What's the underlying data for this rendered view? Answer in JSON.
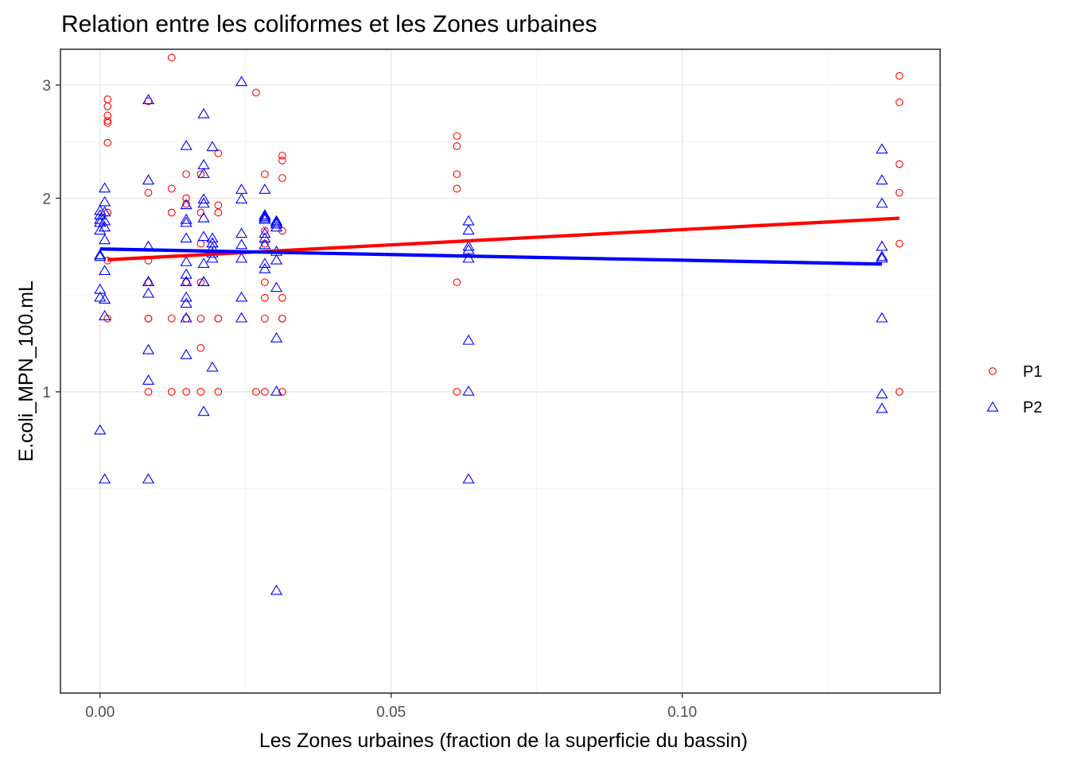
{
  "chart_data": {
    "type": "scatter",
    "title": "Relation entre les coliformes et les Zones urbaines",
    "xlabel": "Les Zones urbaines (fraction de la superficie du bassin)",
    "ylabel": "E.coli_MPN_100.mL",
    "xlim": [
      -0.0068,
      0.1443
    ],
    "ylim": [
      0.34,
      3.41
    ],
    "x_ticks": [
      0.0,
      0.05,
      0.1
    ],
    "x_tick_labels": [
      "0.00",
      "0.05",
      "0.10"
    ],
    "y_ticks": [
      1,
      2,
      3
    ],
    "y_tick_labels": [
      "1",
      "2",
      "3"
    ],
    "grid": true,
    "legend": "right",
    "series": [
      {
        "name": "P1",
        "color": "#ff0000",
        "marker": "circle",
        "x": [
          0.0013,
          0.0013,
          0.0013,
          0.0013,
          0.0013,
          0.0013,
          0.0013,
          0.0013,
          0.0013,
          0.0083,
          0.0083,
          0.0083,
          0.0083,
          0.0083,
          0.0083,
          0.0083,
          0.0123,
          0.0123,
          0.0123,
          0.0123,
          0.0123,
          0.0148,
          0.0148,
          0.0148,
          0.0148,
          0.0148,
          0.0148,
          0.0148,
          0.0173,
          0.0173,
          0.0173,
          0.0173,
          0.0173,
          0.0173,
          0.0173,
          0.0203,
          0.0203,
          0.0203,
          0.0203,
          0.0203,
          0.0203,
          0.0268,
          0.0268,
          0.0283,
          0.0283,
          0.0283,
          0.0283,
          0.0283,
          0.0283,
          0.0283,
          0.0313,
          0.0313,
          0.0313,
          0.0313,
          0.0313,
          0.0313,
          0.0313,
          0.0313,
          0.0613,
          0.0613,
          0.0613,
          0.0613,
          0.0613,
          0.0613,
          0.1373,
          0.1373,
          0.1373,
          0.1373,
          0.1373,
          0.1373
        ],
        "y": [
          2.85,
          2.78,
          2.69,
          2.64,
          2.62,
          2.44,
          1.9,
          1.6,
          1.3,
          2.83,
          2.04,
          1.6,
          1.48,
          1.3,
          1.0,
          1.3,
          3.31,
          2.07,
          1.9,
          1.3,
          1.0,
          2.18,
          2.0,
          1.96,
          1.48,
          1.3,
          1.0,
          1.48,
          1.9,
          1.7,
          1.48,
          1.3,
          1.0,
          1.17,
          2.18,
          2.35,
          1.95,
          1.9,
          1.3,
          1.0,
          1.3,
          2.92,
          1.0,
          2.18,
          1.78,
          1.48,
          1.4,
          1.3,
          1.0,
          1.7,
          2.33,
          2.29,
          2.15,
          1.78,
          1.4,
          1.3,
          1.0,
          1.3,
          2.5,
          2.41,
          2.18,
          2.07,
          1.48,
          1.0,
          3.1,
          2.82,
          2.26,
          2.04,
          1.7,
          1.0
        ]
      },
      {
        "name": "P2",
        "color": "#0000ff",
        "marker": "triangle",
        "x": [
          0.0,
          0.0,
          0.0,
          0.0,
          0.0,
          0.0,
          0.0,
          0.0,
          0.0,
          0.0,
          0.0008,
          0.0008,
          0.0008,
          0.0008,
          0.0008,
          0.0008,
          0.0008,
          0.0008,
          0.0008,
          0.0008,
          0.0083,
          0.0083,
          0.0083,
          0.0083,
          0.0083,
          0.0083,
          0.0083,
          0.0083,
          0.0083,
          0.0148,
          0.0148,
          0.0148,
          0.0148,
          0.0148,
          0.0148,
          0.0148,
          0.0148,
          0.0148,
          0.0148,
          0.0148,
          0.0148,
          0.0178,
          0.0178,
          0.0178,
          0.0178,
          0.0178,
          0.0178,
          0.0178,
          0.0178,
          0.0178,
          0.0178,
          0.0178,
          0.0193,
          0.0193,
          0.0193,
          0.0193,
          0.0193,
          0.0193,
          0.0193,
          0.0193,
          0.0243,
          0.0243,
          0.0243,
          0.0243,
          0.0243,
          0.0243,
          0.0243,
          0.0243,
          0.0283,
          0.0283,
          0.0283,
          0.0283,
          0.0283,
          0.0283,
          0.0283,
          0.0283,
          0.0283,
          0.0283,
          0.0303,
          0.0303,
          0.0303,
          0.0303,
          0.0303,
          0.0303,
          0.0303,
          0.0303,
          0.0303,
          0.0303,
          0.0633,
          0.0633,
          0.0633,
          0.0633,
          0.0633,
          0.0633,
          0.0633,
          0.0633,
          0.1343,
          0.1343,
          0.1343,
          0.1343,
          0.1343,
          0.1343,
          0.1343,
          0.1343,
          0.1343
        ],
        "y": [
          1.91,
          1.88,
          1.85,
          1.78,
          1.63,
          1.44,
          1.4,
          0.87,
          1.83,
          1.62,
          2.07,
          1.97,
          1.8,
          1.72,
          1.54,
          1.39,
          1.31,
          0.73,
          1.9,
          1.84,
          2.84,
          2.13,
          1.68,
          1.48,
          1.42,
          1.16,
          1.04,
          0.73,
          1.48,
          2.41,
          1.95,
          1.83,
          1.73,
          1.59,
          1.52,
          1.48,
          1.4,
          1.37,
          1.3,
          1.14,
          1.85,
          2.7,
          2.25,
          2.18,
          1.99,
          1.86,
          1.48,
          0.93,
          1.74,
          1.96,
          1.58,
          1.48,
          2.4,
          1.73,
          1.7,
          1.67,
          1.64,
          1.61,
          1.09,
          1.7,
          3.03,
          2.06,
          1.99,
          1.76,
          1.69,
          1.61,
          1.4,
          1.3,
          2.06,
          1.88,
          1.87,
          1.85,
          1.76,
          1.73,
          1.58,
          1.55,
          1.86,
          1.69,
          1.84,
          1.83,
          1.82,
          1.65,
          1.6,
          1.45,
          1.21,
          1.0,
          0.49,
          1.8,
          1.84,
          1.78,
          1.68,
          1.66,
          1.61,
          1.2,
          1.0,
          0.73,
          2.38,
          2.13,
          1.96,
          1.68,
          1.61,
          1.3,
          0.99,
          0.94,
          1.62
        ]
      }
    ],
    "fits": [
      {
        "name": "P1",
        "color": "#ff0000",
        "x": [
          0.0013,
          0.1373
        ],
        "y": [
          1.605,
          1.862
        ]
      },
      {
        "name": "P2",
        "color": "#0000ff",
        "x": [
          0.0,
          0.1343
        ],
        "y": [
          1.668,
          1.58
        ]
      }
    ]
  }
}
